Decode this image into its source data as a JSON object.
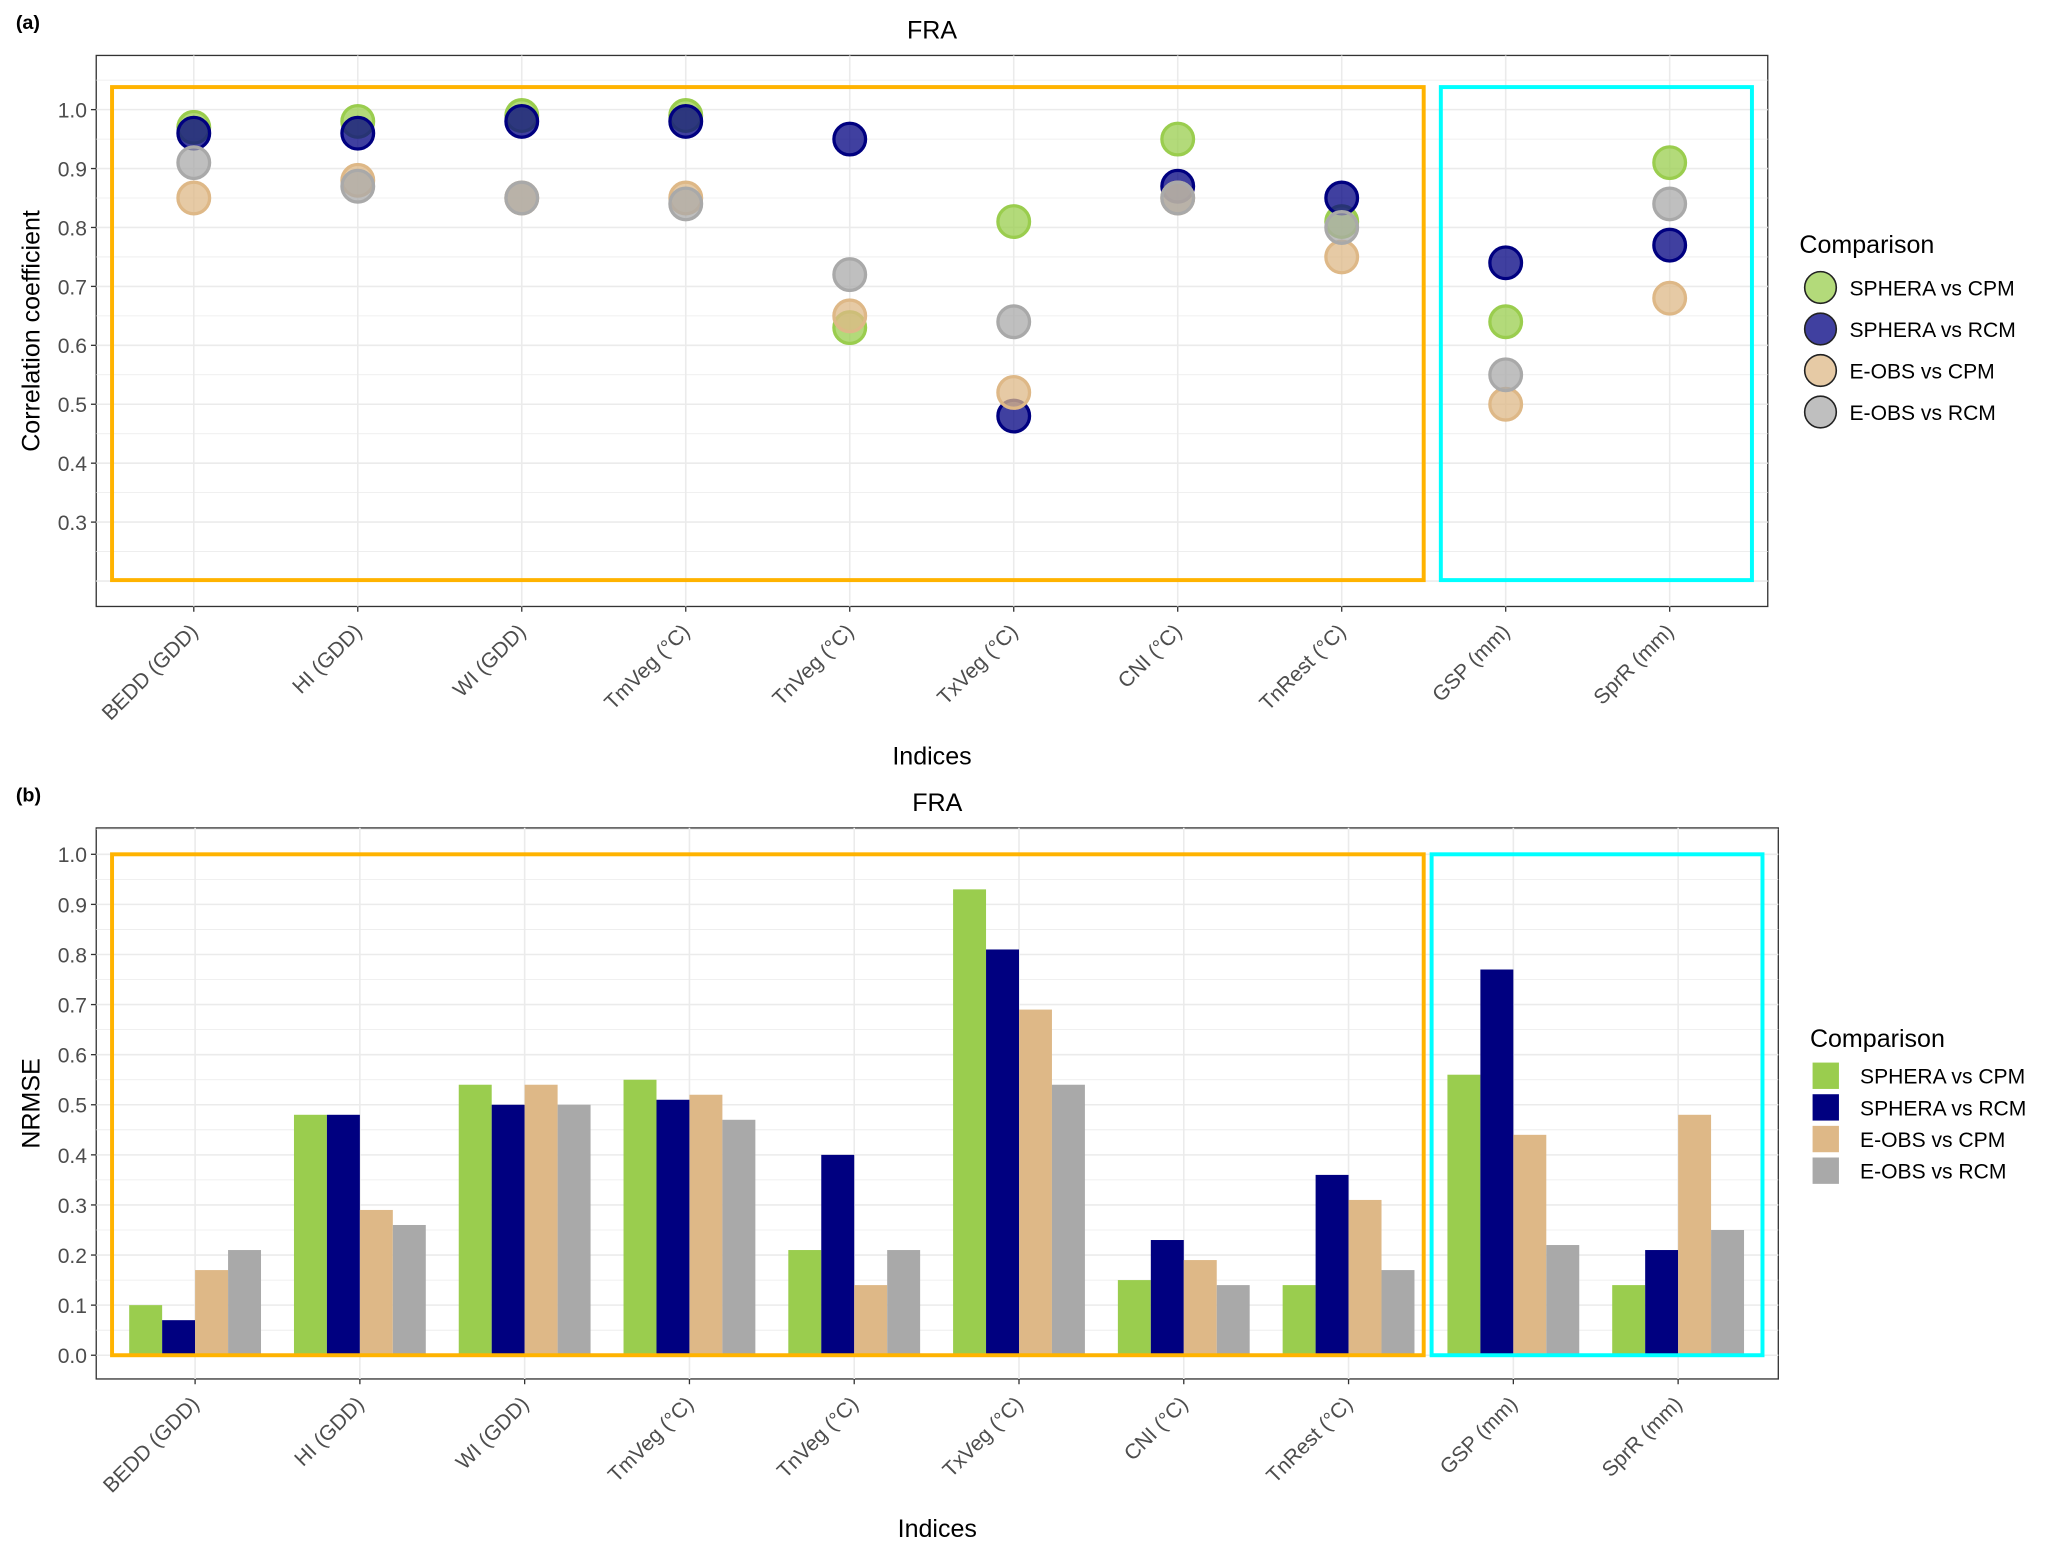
{
  "colors": {
    "SPHERA vs CPM": "#9acd4e",
    "SPHERA vs RCM": "#000080",
    "E-OBS vs CPM": "#deb887",
    "E-OBS vs RCM": "#a9a9a9",
    "highlight_temp": "#ffb300",
    "highlight_precip": "#00ffff"
  },
  "chart_data": [
    {
      "panel_label": "(a)",
      "type": "scatter",
      "title": "FRA",
      "xlabel": "Indices",
      "ylabel": "Correlation coefficient",
      "categories": [
        "BEDD (GDD)",
        "HI (GDD)",
        "WI (GDD)",
        "TmVeg (°C)",
        "TnVeg (°C)",
        "TxVeg (°C)",
        "CNI (°C)",
        "TnRest (°C)",
        "GSP (mm)",
        "SprR (mm)"
      ],
      "yticks": [
        "0.3",
        "0.4",
        "0.5",
        "0.6",
        "0.7",
        "0.8",
        "0.9",
        "1.0"
      ],
      "ylim": [
        0.16,
        1.09
      ],
      "grid": true,
      "legend_title": "Comparison",
      "legend_position": "right",
      "series": [
        {
          "name": "SPHERA vs CPM",
          "values": [
            0.97,
            0.98,
            0.99,
            0.99,
            0.63,
            0.81,
            0.95,
            0.81,
            0.64,
            0.91
          ]
        },
        {
          "name": "SPHERA vs RCM",
          "values": [
            0.96,
            0.96,
            0.98,
            0.98,
            0.95,
            0.48,
            0.87,
            0.85,
            0.74,
            0.77
          ]
        },
        {
          "name": "E-OBS vs CPM",
          "values": [
            0.85,
            0.88,
            0.85,
            0.85,
            0.65,
            0.52,
            0.85,
            0.75,
            0.5,
            0.68
          ]
        },
        {
          "name": "E-OBS vs RCM",
          "values": [
            0.91,
            0.87,
            0.85,
            0.84,
            0.72,
            0.64,
            0.85,
            0.8,
            0.55,
            0.84
          ]
        }
      ]
    },
    {
      "panel_label": "(b)",
      "type": "bar",
      "title": "FRA",
      "xlabel": "Indices",
      "ylabel": "NRMSE",
      "categories": [
        "BEDD (GDD)",
        "HI (GDD)",
        "WI (GDD)",
        "TmVeg (°C)",
        "TnVeg (°C)",
        "TxVeg (°C)",
        "CNI (°C)",
        "TnRest (°C)",
        "GSP (mm)",
        "SprR (mm)"
      ],
      "yticks": [
        "0.0",
        "0.1",
        "0.2",
        "0.3",
        "0.4",
        "0.5",
        "0.6",
        "0.7",
        "0.8",
        "0.9",
        "1.0"
      ],
      "ylim": [
        -0.05,
        1.05
      ],
      "grid": true,
      "legend_title": "Comparison",
      "legend_position": "right",
      "series": [
        {
          "name": "SPHERA vs CPM",
          "values": [
            0.1,
            0.48,
            0.54,
            0.55,
            0.21,
            0.93,
            0.15,
            0.14,
            0.56,
            0.14
          ]
        },
        {
          "name": "SPHERA vs RCM",
          "values": [
            0.07,
            0.48,
            0.5,
            0.51,
            0.4,
            0.81,
            0.23,
            0.36,
            0.77,
            0.21
          ]
        },
        {
          "name": "E-OBS vs CPM",
          "values": [
            0.17,
            0.29,
            0.54,
            0.52,
            0.14,
            0.69,
            0.19,
            0.31,
            0.44,
            0.48
          ]
        },
        {
          "name": "E-OBS vs RCM",
          "values": [
            0.21,
            0.26,
            0.5,
            0.47,
            0.21,
            0.54,
            0.14,
            0.17,
            0.22,
            0.25
          ]
        }
      ]
    }
  ]
}
